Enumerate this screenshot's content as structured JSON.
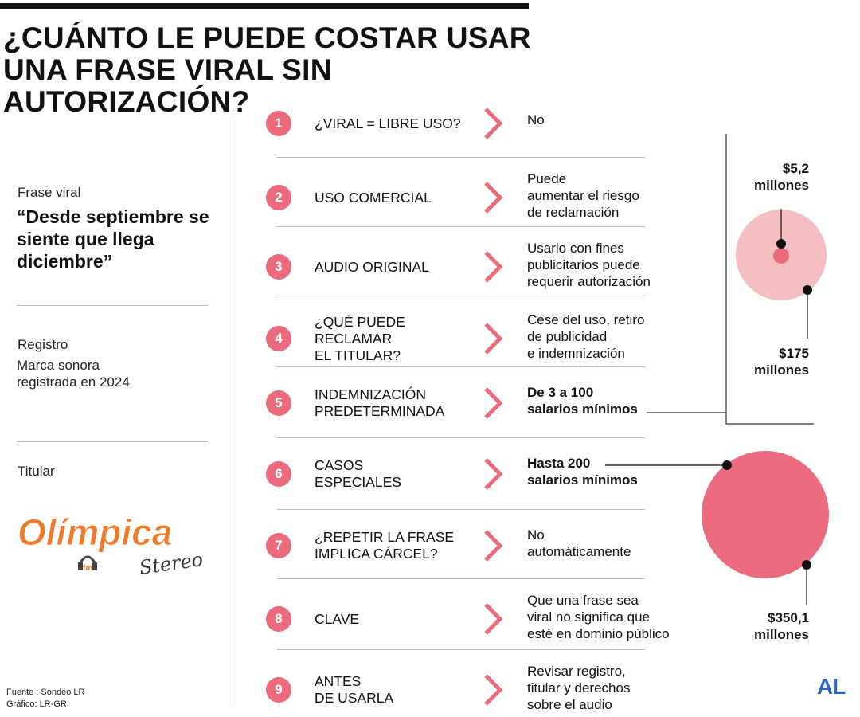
{
  "title": [
    "¿CUÁNTO LE PUEDE COSTAR USAR",
    "UNA FRASE VIRAL SIN AUTORIZACIÓN?"
  ],
  "left": {
    "phrase_label": "Frase viral",
    "phrase": "“Desde septiembre se siente que llega diciembre”",
    "registro_label": "Registro",
    "registro_value": [
      "Marca sonora",
      "registrada en 2024"
    ],
    "titular_label": "Titular",
    "logo_main": "Olímpica",
    "logo_fm": "fm",
    "logo_sub": "Stereo"
  },
  "rows": [
    {
      "n": "1",
      "label": [
        "¿VIRAL = LIBRE USO?"
      ],
      "value": [
        "No"
      ],
      "bold": false
    },
    {
      "n": "2",
      "label": [
        "USO COMERCIAL"
      ],
      "value": [
        "Puede",
        "aumentar el riesgo",
        "de reclamación"
      ],
      "bold": false
    },
    {
      "n": "3",
      "label": [
        "AUDIO ORIGINAL"
      ],
      "value": [
        "Usarlo con fines",
        "publicitarios puede",
        "requerir autorización"
      ],
      "bold": false
    },
    {
      "n": "4",
      "label": [
        "¿QUÉ PUEDE",
        "RECLAMAR",
        "EL TITULAR?"
      ],
      "value": [
        "Cese del uso, retiro",
        "de publicidad",
        "e indemnización"
      ],
      "bold": false
    },
    {
      "n": "5",
      "label": [
        "INDEMNIZACIÓN",
        "PREDETERMINADA"
      ],
      "value": [
        "De 3 a 100",
        "salarios mínimos"
      ],
      "bold": true
    },
    {
      "n": "6",
      "label": [
        "CASOS",
        "ESPECIALES"
      ],
      "value": [
        "Hasta 200",
        "salarios mínimos"
      ],
      "bold": true
    },
    {
      "n": "7",
      "label": [
        "¿REPETIR LA FRASE",
        "IMPLICA CÁRCEL?"
      ],
      "value": [
        "No",
        "automáticamente"
      ],
      "bold": false
    },
    {
      "n": "8",
      "label": [
        "CLAVE"
      ],
      "value": [
        "Que una frase sea",
        "viral no significa que",
        "esté en dominio público"
      ],
      "bold": false
    },
    {
      "n": "9",
      "label": [
        "ANTES",
        "DE USARLA"
      ],
      "value": [
        "Revisar registro,",
        "titular y derechos",
        "sobre el audio"
      ],
      "bold": false
    }
  ],
  "amounts": {
    "a": [
      "$5,2",
      "millones"
    ],
    "b": [
      "$175",
      "millones"
    ],
    "c": [
      "$350,1",
      "millones"
    ]
  },
  "colors": {
    "accent": "#eb6b7c",
    "light_circle": "#f3bfc3",
    "big_circle": "#ec6b7e",
    "brand": "#2b63c4"
  },
  "footer": {
    "source": "Fuente : Sondeo LR",
    "graphic": "Gráfico: LR-GR",
    "brand": "AL"
  }
}
